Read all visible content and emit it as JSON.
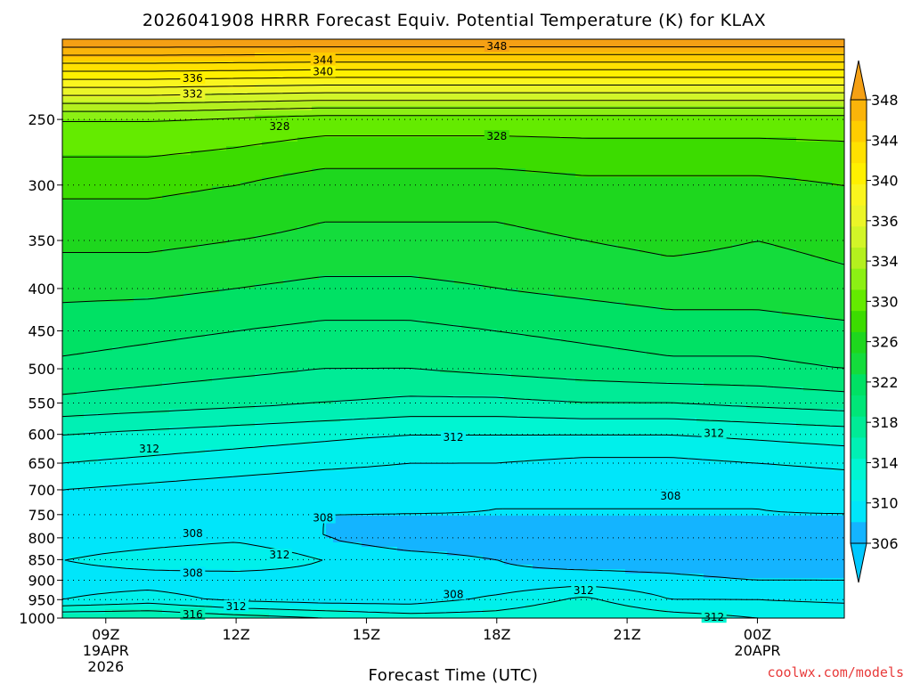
{
  "title": "2026041908 HRRR Forecast Equiv. Potential Temperature (K) for KLAX",
  "credit": "coolwx.com/models",
  "colors": {
    "ground": "#a0522d",
    "contour": "#000000",
    "credit": "#e83a3a"
  },
  "chart_data": {
    "type": "heatmap",
    "title": "2026041908 HRRR Forecast Equiv. Potential Temperature (K) for KLAX",
    "xlabel": "Forecast Time (UTC)",
    "ylabel": "",
    "x_ticks": [
      {
        "hour": 9,
        "lines": [
          "09Z",
          "19APR",
          "2026"
        ]
      },
      {
        "hour": 12,
        "lines": [
          "12Z"
        ]
      },
      {
        "hour": 15,
        "lines": [
          "15Z"
        ]
      },
      {
        "hour": 18,
        "lines": [
          "18Z"
        ]
      },
      {
        "hour": 21,
        "lines": [
          "21Z"
        ]
      },
      {
        "hour": 24,
        "lines": [
          "00Z",
          "20APR"
        ]
      }
    ],
    "xlim": [
      8,
      26
    ],
    "y_ticks": [
      250,
      300,
      350,
      400,
      450,
      500,
      550,
      600,
      650,
      700,
      750,
      800,
      850,
      900,
      950,
      1000
    ],
    "ylim_hpa": [
      1000,
      200
    ],
    "y_scale": "log-pressure",
    "colorbar": {
      "levels": [
        306,
        308,
        310,
        312,
        314,
        316,
        318,
        320,
        322,
        324,
        326,
        328,
        330,
        332,
        334,
        336,
        338,
        340,
        342,
        344,
        346,
        348
      ],
      "labels": [
        306,
        310,
        314,
        318,
        322,
        326,
        330,
        334,
        336,
        340,
        344,
        348
      ],
      "extend": "both"
    },
    "levels_hpa": [
      200,
      250,
      300,
      350,
      400,
      450,
      500,
      550,
      600,
      650,
      700,
      750,
      800,
      850,
      900,
      950,
      1000
    ],
    "hours": [
      8,
      10,
      12,
      14,
      16,
      18,
      20,
      22,
      24,
      26
    ],
    "theta_e": [
      [
        350,
        350,
        350,
        350,
        350,
        350,
        350,
        350,
        350,
        350
      ],
      [
        330,
        330,
        329.5,
        329,
        329,
        329,
        329,
        329,
        329,
        329
      ],
      [
        326.5,
        326.5,
        326,
        325,
        325,
        325,
        325.5,
        325.5,
        325.5,
        326
      ],
      [
        324.5,
        324.5,
        324,
        323.5,
        323.5,
        323.5,
        324,
        324.5,
        324,
        324.5
      ],
      [
        322.5,
        322.5,
        322,
        321.5,
        321.5,
        322,
        322.5,
        323,
        323,
        323.5
      ],
      [
        321,
        320.5,
        320,
        319.5,
        319.5,
        320,
        320.5,
        321,
        321,
        321.5
      ],
      [
        319.5,
        319,
        318.5,
        318,
        318,
        318.5,
        319,
        319.5,
        319.5,
        320
      ],
      [
        317.5,
        317,
        316.5,
        316,
        315.5,
        315.5,
        316,
        316,
        316.5,
        317
      ],
      [
        314,
        313.5,
        313,
        312.5,
        312,
        312,
        312,
        312,
        312.5,
        313
      ],
      [
        312,
        311.5,
        311,
        310.5,
        310,
        310,
        309.5,
        309.5,
        310,
        310.5
      ],
      [
        310,
        309.5,
        309,
        308.5,
        308.5,
        308,
        308,
        308,
        308,
        308.5
      ],
      [
        309,
        308.5,
        308.5,
        308,
        308,
        308,
        308,
        308,
        308,
        308
      ],
      [
        308.5,
        309,
        309.5,
        308,
        306.5,
        306.5,
        306.5,
        306.5,
        306.5,
        306.5
      ],
      [
        310,
        311,
        312,
        310,
        309,
        308,
        307,
        307,
        306.5,
        306.5
      ],
      [
        309,
        309,
        308.5,
        309,
        309,
        308.5,
        309,
        308.5,
        308,
        308
      ],
      [
        310,
        311,
        309.5,
        309,
        309,
        310.5,
        312.5,
        310,
        310,
        309.5
      ],
      [
        316,
        316,
        315,
        314,
        313,
        313,
        314,
        313,
        312,
        312
      ]
    ],
    "contour_labels": [
      {
        "text": "348",
        "hour": 18.0,
        "hpa": 204
      },
      {
        "text": "344",
        "hour": 14.0,
        "hpa": 212
      },
      {
        "text": "340",
        "hour": 14.0,
        "hpa": 219
      },
      {
        "text": "336",
        "hour": 11.0,
        "hpa": 223
      },
      {
        "text": "332",
        "hour": 11.0,
        "hpa": 233
      },
      {
        "text": "328",
        "hour": 13.0,
        "hpa": 255
      },
      {
        "text": "328",
        "hour": 18.0,
        "hpa": 262
      },
      {
        "text": "312",
        "hour": 10.0,
        "hpa": 625
      },
      {
        "text": "312",
        "hour": 17.0,
        "hpa": 605
      },
      {
        "text": "312",
        "hour": 23.0,
        "hpa": 598
      },
      {
        "text": "308",
        "hour": 22.0,
        "hpa": 712
      },
      {
        "text": "308",
        "hour": 14.0,
        "hpa": 757
      },
      {
        "text": "308",
        "hour": 11.0,
        "hpa": 790
      },
      {
        "text": "312",
        "hour": 13.0,
        "hpa": 839
      },
      {
        "text": "308",
        "hour": 11.0,
        "hpa": 882
      },
      {
        "text": "308",
        "hour": 17.0,
        "hpa": 936
      },
      {
        "text": "312",
        "hour": 20.0,
        "hpa": 926
      },
      {
        "text": "312",
        "hour": 12.0,
        "hpa": 968
      },
      {
        "text": "316",
        "hour": 11.0,
        "hpa": 990
      },
      {
        "text": "312",
        "hour": 23.0,
        "hpa": 998
      }
    ],
    "ground_hpa": 1000
  }
}
